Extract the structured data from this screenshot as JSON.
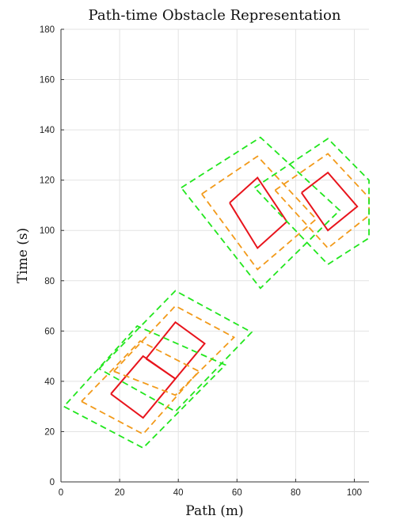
{
  "chart_data": {
    "type": "line",
    "title": "Path-time Obstacle Representation",
    "xlabel": "Path (m)",
    "ylabel": "Time (s)",
    "xlim": [
      0,
      105
    ],
    "ylim": [
      0,
      180
    ],
    "xticks": [
      "0",
      "20",
      "40",
      "60",
      "80",
      "100"
    ],
    "yticks": [
      "0",
      "20",
      "40",
      "60",
      "80",
      "100",
      "120",
      "140",
      "160",
      "180"
    ],
    "grid": true,
    "legend": "none",
    "colors": {
      "obstacle": "#e8141c",
      "inner_boundary": "#f29a1a",
      "outer_boundary": "#22e61e"
    },
    "series": [
      {
        "style": "solid",
        "color": "obstacle",
        "x": [
          17,
          28,
          39,
          28,
          17
        ],
        "y": [
          35,
          25.5,
          41,
          50,
          35
        ]
      },
      {
        "style": "solid",
        "color": "obstacle",
        "x": [
          29,
          39,
          49,
          39,
          29
        ],
        "y": [
          49,
          63.5,
          55,
          41,
          49
        ]
      },
      {
        "style": "solid",
        "color": "obstacle",
        "x": [
          57.5,
          67,
          77,
          67,
          57.5
        ],
        "y": [
          111,
          121,
          103.5,
          93,
          111
        ]
      },
      {
        "style": "solid",
        "color": "obstacle",
        "x": [
          82,
          91,
          101,
          91,
          82
        ],
        "y": [
          115,
          123,
          109.5,
          100,
          115
        ]
      },
      {
        "style": "dashed",
        "color": "inner_boundary",
        "x": [
          7,
          28,
          47,
          27,
          7
        ],
        "y": [
          32,
          19,
          44,
          56,
          32
        ]
      },
      {
        "style": "dashed",
        "color": "inner_boundary",
        "x": [
          18,
          39,
          59,
          39,
          18
        ],
        "y": [
          44,
          70,
          57.5,
          34.5,
          44
        ]
      },
      {
        "style": "dashed",
        "color": "inner_boundary",
        "x": [
          48,
          67,
          87,
          67,
          48
        ],
        "y": [
          114.5,
          129.5,
          104.5,
          84.5,
          114.5
        ]
      },
      {
        "style": "dashed",
        "color": "inner_boundary",
        "x": [
          73,
          91,
          105,
          105,
          91,
          73
        ],
        "y": [
          116,
          130.5,
          113,
          106,
          93,
          116
        ]
      },
      {
        "style": "dashed",
        "color": "outer_boundary",
        "x": [
          1,
          28,
          56,
          26,
          1
        ],
        "y": [
          30,
          13.5,
          46.5,
          62,
          30
        ]
      },
      {
        "style": "dashed",
        "color": "outer_boundary",
        "x": [
          13,
          39,
          65,
          39,
          13
        ],
        "y": [
          45,
          76,
          59.5,
          28,
          45
        ]
      },
      {
        "style": "dashed",
        "color": "outer_boundary",
        "x": [
          41,
          68,
          95,
          68,
          41
        ],
        "y": [
          117,
          137,
          108,
          77,
          117
        ]
      },
      {
        "style": "dashed",
        "color": "outer_boundary",
        "x": [
          66,
          91,
          105,
          105,
          91,
          66
        ],
        "y": [
          117,
          136.5,
          120,
          97,
          86.5,
          117
        ]
      }
    ]
  }
}
